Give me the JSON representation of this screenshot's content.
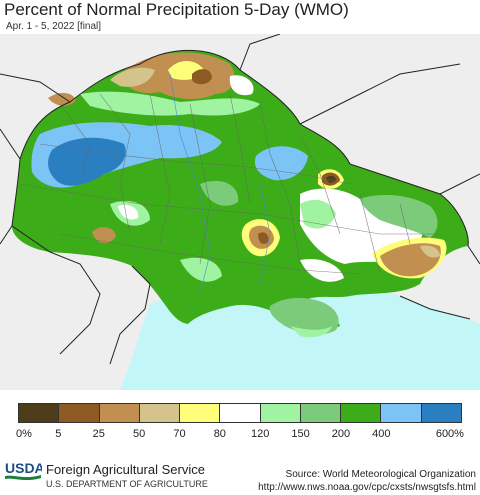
{
  "title": "Percent of Normal Precipitation 5-Day (WMO)",
  "subtitle": "Apr. 1 - 5, 2022 [final]",
  "legend": {
    "colors": [
      "#4d3d1a",
      "#8c5a22",
      "#c18f4f",
      "#d4c38a",
      "#fefe7a",
      "#ffffff",
      "#a0f3a0",
      "#7bcb7b",
      "#3cad19",
      "#7cc3f6",
      "#2a7fc1"
    ],
    "labels": [
      "0%",
      "5",
      "25",
      "50",
      "70",
      "80",
      "120",
      "150",
      "200",
      "400",
      "600%"
    ]
  },
  "colors": {
    "sea": "#c3f7f7",
    "outside": "#eeeeef",
    "base_green": "#3cad19"
  },
  "footer": {
    "logo_text": "USDA",
    "agency": "Foreign Agricultural Service",
    "department": "U.S. DEPARTMENT OF AGRICULTURE",
    "source": "Source: World Meteorological Organization",
    "url": "http://www.nws.noaa.gov/cpc/cxsts/nwsgtsfs.html"
  }
}
